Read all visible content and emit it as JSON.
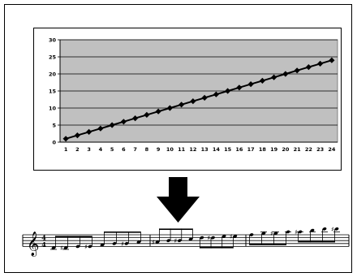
{
  "chart_data": {
    "type": "line",
    "x": [
      1,
      2,
      3,
      4,
      5,
      6,
      7,
      8,
      9,
      10,
      11,
      12,
      13,
      14,
      15,
      16,
      17,
      18,
      19,
      20,
      21,
      22,
      23,
      24
    ],
    "y": [
      1,
      2,
      3,
      4,
      5,
      6,
      7,
      8,
      9,
      10,
      11,
      12,
      13,
      14,
      15,
      16,
      17,
      18,
      19,
      20,
      21,
      22,
      23,
      24
    ],
    "ylim": [
      0,
      30
    ],
    "y_ticks": [
      "0",
      "5",
      "10",
      "15",
      "20",
      "25",
      "30"
    ],
    "x_ticks": [
      "1",
      "2",
      "3",
      "4",
      "5",
      "6",
      "7",
      "8",
      "9",
      "10",
      "11",
      "12",
      "13",
      "14",
      "15",
      "16",
      "17",
      "18",
      "19",
      "20",
      "21",
      "22",
      "23",
      "24"
    ],
    "grid": true,
    "plot_background": "#c0c0c0",
    "line_color": "#000000",
    "marker": "diamond"
  },
  "arrow": {
    "direction": "down",
    "color": "#000000"
  },
  "score": {
    "clef": "treble",
    "time_signature": {
      "top": "4",
      "bottom": "4"
    },
    "direction": "ascending chromatic",
    "note_count": 24
  }
}
